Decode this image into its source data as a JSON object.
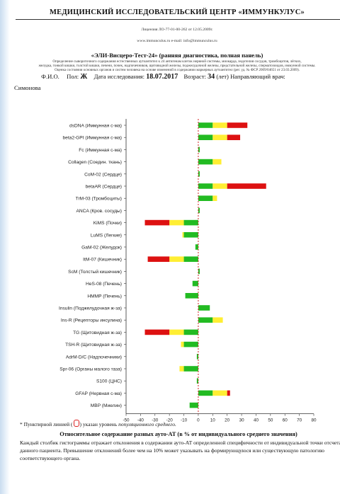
{
  "header": {
    "title": "МЕДИЦИНСКИЙ ИССЛЕДОВАТЕЛЬСКИЙ ЦЕНТР «ИММУНКУЛУС»",
    "license": "Лицензия ЛО-77-01-00-262 от 12.05.2009г.",
    "contacts": "www.immunculus.ru e-mail: info@immunculus.ru"
  },
  "test": {
    "title": "«ЭЛИ-Висцеро-Тест-24» (ранняя диагностика, полная панель)",
    "desc1": "Определение сывороточного содержания естественных аутоантител к 24 антигенам клеток нервной системы, миокарда, эндотелия сосудов, тромбоцитов, лёгких,",
    "desc2": "желудка, тонкой кишки, толстой кишки, печени, почек, надпочечников, щитовидной железы, поджелудочной железы, предстательной железы, сперматозоидов, иммунной системы.",
    "desc3": "Оценка состояния основных органов и систем человека на основе изменений в содержании маркерных аутоантител (рег. уд. № ФСР 2009/04651 от 23.03.2009)."
  },
  "patient": {
    "fio_label": "Ф.И.О.",
    "sex_label": "Пол:",
    "sex": "Ж",
    "date_label": "Дата исследования:",
    "date": "18.07.2017",
    "age_label": "Возраст:",
    "age": "34",
    "age_unit": "(лет)",
    "doctor_label": "Направляющий врач:",
    "doctor": "Симонова"
  },
  "chart_data": {
    "type": "bar",
    "xlim": [
      -50,
      80
    ],
    "xticks": [
      -50,
      -40,
      -30,
      -20,
      -10,
      0,
      10,
      20,
      30,
      40,
      50,
      60,
      70,
      80
    ],
    "reference_line": 0,
    "colors": {
      "green": "#22bb22",
      "yellow": "#ffee33",
      "red": "#dd1111",
      "dash": "#d22222"
    },
    "categories": [
      "dsDNA (Иммунная с-ма)",
      "beta2-GPI (Иммунная с-ма)",
      "Fc (Иммунная с-ма)",
      "Collagen (Соедин. ткань)",
      "CoM-02 (Сердце)",
      "betaAR (Сердце)",
      "TrM-03 (Тромбоциты)",
      "ANCA (Кров. сосуды)",
      "KiMS (Почки)",
      "LuMS (Легкие)",
      "GaM-02 (Желудок)",
      "ItM-07 (Кишечник)",
      "ScM (Толстый кишечник)",
      "HeS-08 (Печень)",
      "HMMP (Печень)",
      "Insulin (Поджелудочная ж-за)",
      "Ins-R (Рецепторы инсулина)",
      "TG (Щитовидная ж-за)",
      "TSH-R (Щитовидная ж-за)",
      "AdrM-D/C (Надпочечники)",
      "Spr-06 (Органы малого таза)",
      "S100 (ЦНС)",
      "GFAP (Нервная с-ма)",
      "MBP (Миелин)"
    ],
    "values": [
      34,
      29,
      1,
      16,
      1,
      47,
      13,
      1,
      -37,
      -11,
      -2,
      -35,
      1,
      -4,
      -9,
      8,
      17,
      -37,
      -12,
      -1,
      -13,
      -1,
      22,
      -6
    ]
  },
  "footer": {
    "note_prefix": "* Пунктирной линией (",
    "note_mid": ") указан уровень ",
    "note_italic": "популяционного среднего.",
    "title": "Относительное содержание разных ауто-АТ (в % от индивидуального среднего значения)",
    "text": "Каждый столбик гистограммы отражает отклонения в содержании ауто-АТ определенной специфичности от индивидуальной точки отсчета данного пациента. Превышение отклонений более чем на 10% может указывать на формирующуюся или существующую патологию соответствующего органа."
  }
}
